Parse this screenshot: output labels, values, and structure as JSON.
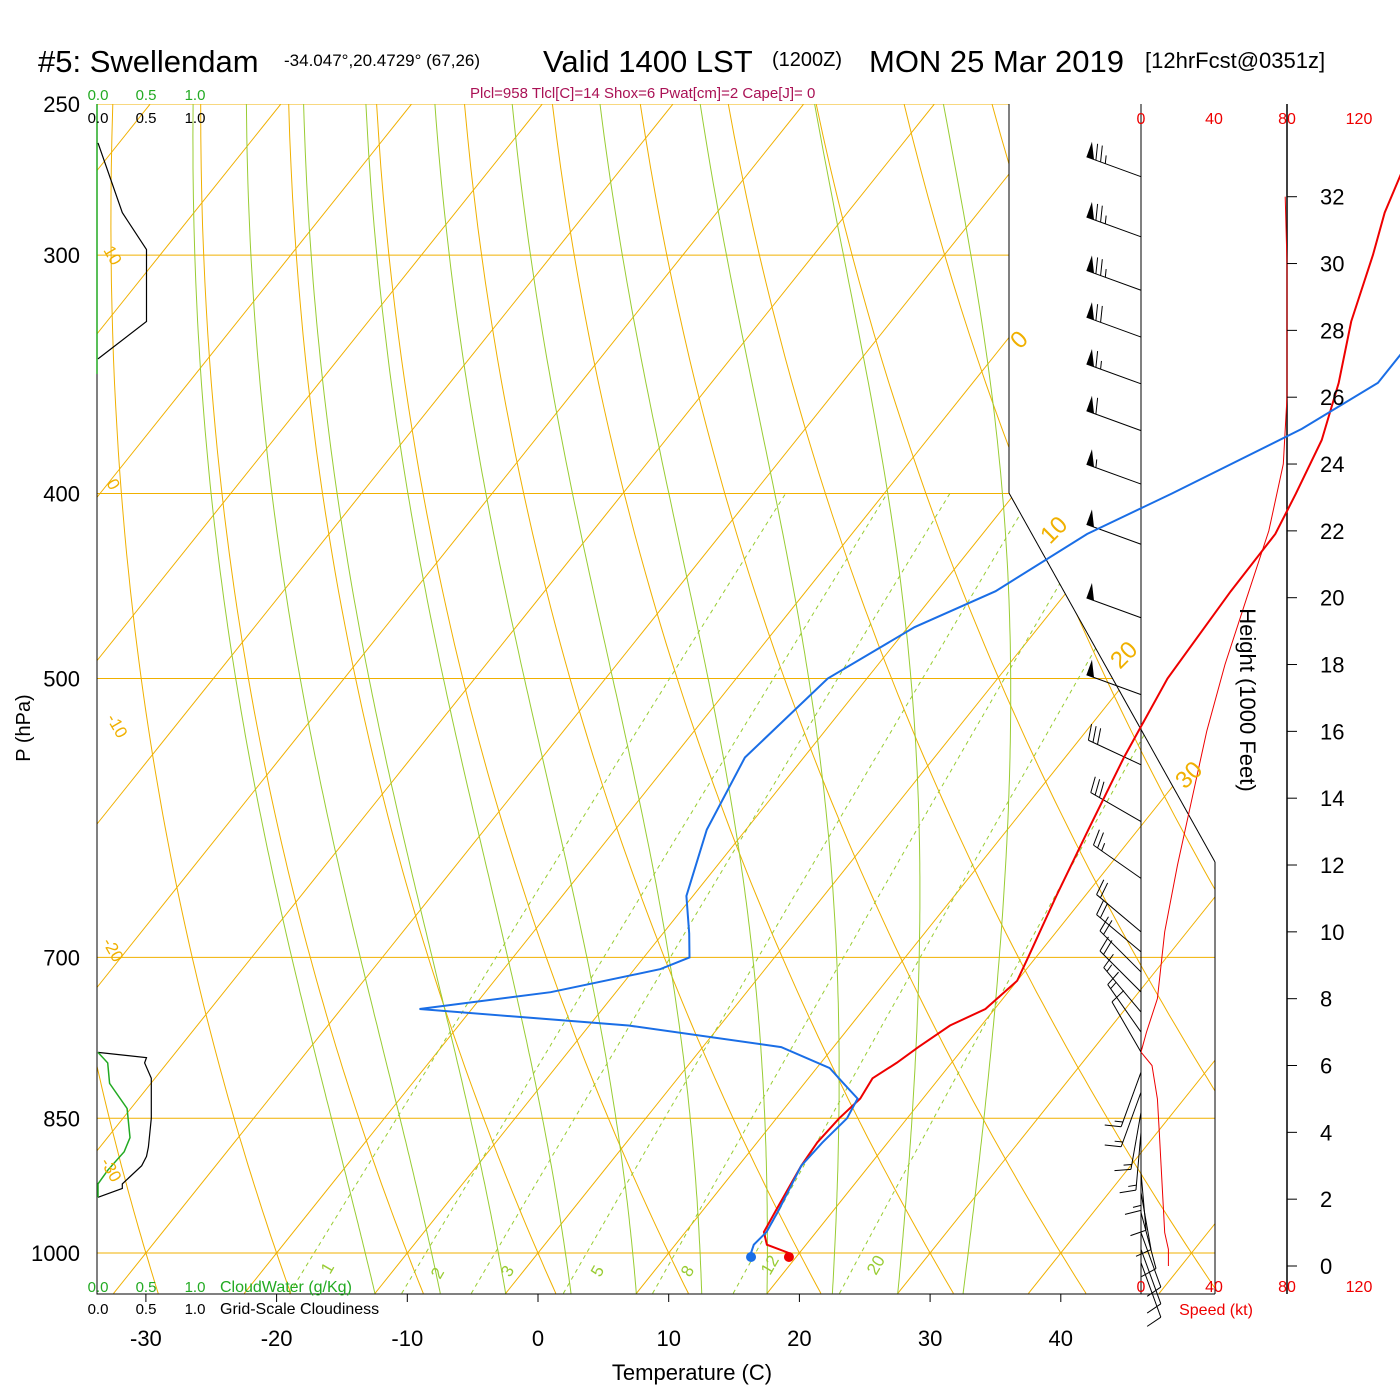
{
  "header": {
    "station": "#5: Swellendam",
    "coords": "-34.047°,20.4729° (67,26)",
    "valid": "Valid 1400 LST",
    "zulu": "(1200Z)",
    "date": "MON 25 Mar 2019",
    "fcst": "[12hrFcst@0351z]",
    "indices": "Plcl=958 Tlcl[C]=14 Shox=6 Pwat[cm]=2 Cape[J]= 0"
  },
  "colors": {
    "temperature": "#ee0000",
    "dewpoint": "#1a6ee6",
    "isobar_isotherm": "#f0b000",
    "dry_adiabat": "#99cc33",
    "mixing_ratio": "#99cc33",
    "cloud_water": "#22aa22",
    "index_text": "#aa1155",
    "speed_axis": "#ee0000"
  },
  "chart_data": {
    "type": "line",
    "title": "#5: Swellendam  Valid 1400 LST (1200Z) MON 25 Mar 2019 [12hrFcst@0351z]",
    "xlabel": "Temperature (C)",
    "ylabel": "P (hPa)",
    "right_label": "Height (1000 Feet)",
    "x_ticks": [
      "-30",
      "-20",
      "-10",
      "0",
      "10",
      "20",
      "30",
      "40"
    ],
    "p_ticks": [
      "250",
      "300",
      "400",
      "500",
      "700",
      "850",
      "1000"
    ],
    "height_ticks": [
      "0",
      "2",
      "4",
      "6",
      "8",
      "10",
      "12",
      "14",
      "16",
      "18",
      "20",
      "22",
      "24",
      "26",
      "28",
      "30",
      "32"
    ],
    "speed_ticks": [
      "0",
      "40",
      "80",
      "120"
    ],
    "speed_label": "Speed (kt)",
    "scale_ticks": [
      "0.0",
      "0.5",
      "1.0"
    ],
    "cloud_water_label": "CloudWater (g/Kg)",
    "cloudiness_label": "Grid-Scale Cloudiness",
    "mixing_ratio_labels": [
      "1",
      "2",
      "3",
      "5",
      "8",
      "12",
      "20"
    ],
    "temperature_labels_left": [
      "10",
      "0",
      "-10",
      "-20",
      "-30"
    ],
    "temperature_labels_right": [
      "0",
      "10",
      "20",
      "30"
    ],
    "series": [
      {
        "name": "Temperature",
        "points": [
          [
            1000,
            19.2
          ],
          [
            990,
            17.0
          ],
          [
            975,
            16.0
          ],
          [
            950,
            15.6
          ],
          [
            925,
            15.2
          ],
          [
            900,
            14.8
          ],
          [
            875,
            14.6
          ],
          [
            850,
            14.8
          ],
          [
            830,
            15.2
          ],
          [
            810,
            14.9
          ],
          [
            795,
            15.8
          ],
          [
            780,
            16.5
          ],
          [
            760,
            17.6
          ],
          [
            745,
            19.3
          ],
          [
            720,
            20.0
          ],
          [
            700,
            19.4
          ],
          [
            650,
            17.8
          ],
          [
            600,
            16.2
          ],
          [
            550,
            14.5
          ],
          [
            500,
            13.0
          ],
          [
            450,
            12.5
          ],
          [
            420,
            12.4
          ],
          [
            400,
            11.5
          ],
          [
            375,
            10.2
          ],
          [
            350,
            8.0
          ],
          [
            325,
            5.2
          ],
          [
            300,
            2.8
          ],
          [
            285,
            1.1
          ],
          [
            270,
            -0.2
          ]
        ]
      },
      {
        "name": "Dewpoint",
        "points": [
          [
            1000,
            16.3
          ],
          [
            990,
            16.0
          ],
          [
            975,
            16.2
          ],
          [
            950,
            15.8
          ],
          [
            925,
            15.3
          ],
          [
            900,
            14.8
          ],
          [
            875,
            15.0
          ],
          [
            850,
            15.4
          ],
          [
            830,
            15.0
          ],
          [
            815,
            13.0
          ],
          [
            800,
            11.0
          ],
          [
            780,
            6.0
          ],
          [
            760,
            -7.0
          ],
          [
            745,
            -24.0
          ],
          [
            730,
            -15.0
          ],
          [
            710,
            -8.0
          ],
          [
            700,
            -6.5
          ],
          [
            680,
            -8.0
          ],
          [
            650,
            -10.5
          ],
          [
            600,
            -13.0
          ],
          [
            550,
            -14.5
          ],
          [
            500,
            -13.0
          ],
          [
            470,
            -9.5
          ],
          [
            450,
            -5.5
          ],
          [
            420,
            -2.0
          ],
          [
            400,
            2.0
          ],
          [
            370,
            8.0
          ],
          [
            350,
            11.0
          ],
          [
            330,
            11.0
          ],
          [
            300,
            7.5
          ],
          [
            285,
            5.0
          ],
          [
            270,
            2.2
          ]
        ]
      }
    ],
    "cloudiness": [
      [
        785,
        0.0
      ],
      [
        790,
        0.5
      ],
      [
        795,
        0.48
      ],
      [
        810,
        0.55
      ],
      [
        850,
        0.55
      ],
      [
        880,
        0.52
      ],
      [
        890,
        0.5
      ],
      [
        900,
        0.45
      ],
      [
        920,
        0.25
      ],
      [
        925,
        0.25
      ],
      [
        935,
        0.0
      ]
    ],
    "cloud_water": [
      [
        785,
        0.0
      ],
      [
        795,
        0.1
      ],
      [
        815,
        0.12
      ],
      [
        840,
        0.3
      ],
      [
        870,
        0.33
      ],
      [
        885,
        0.27
      ],
      [
        905,
        0.1
      ],
      [
        920,
        0.0
      ],
      [
        935,
        0.0
      ]
    ],
    "cloudiness_upper": [
      [
        262,
        0.0
      ],
      [
        285,
        0.25
      ],
      [
        298,
        0.5
      ],
      [
        325,
        0.5
      ],
      [
        340,
        0.0
      ]
    ],
    "height_profile_kt": [
      [
        0.0,
        15
      ],
      [
        0.5,
        15
      ],
      [
        1.0,
        13
      ],
      [
        2.0,
        12
      ],
      [
        3.0,
        11
      ],
      [
        4.0,
        10
      ],
      [
        5.0,
        9
      ],
      [
        6.0,
        6
      ],
      [
        6.4,
        0
      ],
      [
        7.0,
        3
      ],
      [
        8.0,
        9
      ],
      [
        10.0,
        13
      ],
      [
        12.0,
        20
      ],
      [
        14.0,
        28
      ],
      [
        16.0,
        36
      ],
      [
        18.0,
        46
      ],
      [
        20.0,
        58
      ],
      [
        22.0,
        70
      ],
      [
        24.0,
        78
      ],
      [
        26.0,
        80
      ],
      [
        28.0,
        80
      ],
      [
        30.0,
        80
      ],
      [
        32.0,
        79
      ]
    ],
    "wind_barbs": [
      {
        "h": 32.6,
        "dir": 290,
        "kt": 75
      },
      {
        "h": 30.8,
        "dir": 290,
        "kt": 75
      },
      {
        "h": 29.2,
        "dir": 290,
        "kt": 75
      },
      {
        "h": 27.8,
        "dir": 290,
        "kt": 70
      },
      {
        "h": 26.4,
        "dir": 290,
        "kt": 65
      },
      {
        "h": 25.0,
        "dir": 290,
        "kt": 60
      },
      {
        "h": 23.4,
        "dir": 290,
        "kt": 55
      },
      {
        "h": 21.6,
        "dir": 290,
        "kt": 50
      },
      {
        "h": 19.4,
        "dir": 290,
        "kt": 50
      },
      {
        "h": 17.1,
        "dir": 290,
        "kt": 50
      },
      {
        "h": 15.0,
        "dir": 295,
        "kt": 30
      },
      {
        "h": 13.3,
        "dir": 300,
        "kt": 30
      },
      {
        "h": 11.6,
        "dir": 305,
        "kt": 25
      },
      {
        "h": 10.0,
        "dir": 310,
        "kt": 20
      },
      {
        "h": 9.4,
        "dir": 310,
        "kt": 20
      },
      {
        "h": 8.8,
        "dir": 315,
        "kt": 20
      },
      {
        "h": 8.2,
        "dir": 315,
        "kt": 20
      },
      {
        "h": 7.6,
        "dir": 320,
        "kt": 15
      },
      {
        "h": 7.0,
        "dir": 325,
        "kt": 15
      },
      {
        "h": 6.4,
        "dir": 330,
        "kt": 10
      },
      {
        "h": 5.8,
        "dir": 200,
        "kt": 15
      },
      {
        "h": 5.2,
        "dir": 200,
        "kt": 15
      },
      {
        "h": 4.6,
        "dir": 190,
        "kt": 15
      },
      {
        "h": 4.0,
        "dir": 185,
        "kt": 15
      },
      {
        "h": 3.4,
        "dir": 180,
        "kt": 15
      },
      {
        "h": 2.8,
        "dir": 175,
        "kt": 10
      },
      {
        "h": 2.2,
        "dir": 170,
        "kt": 10
      },
      {
        "h": 1.6,
        "dir": 165,
        "kt": 10
      },
      {
        "h": 1.0,
        "dir": 160,
        "kt": 10
      },
      {
        "h": 0.5,
        "dir": 160,
        "kt": 10
      },
      {
        "h": 0.1,
        "dir": 160,
        "kt": 10
      }
    ]
  }
}
